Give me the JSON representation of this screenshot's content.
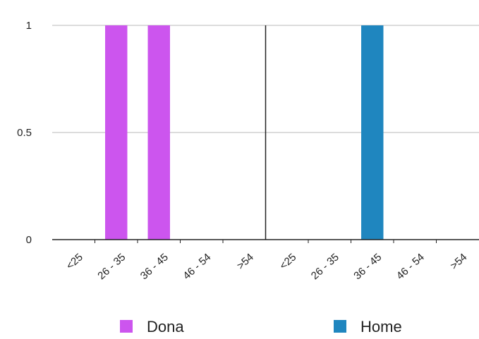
{
  "chart_data": {
    "type": "bar",
    "title": "",
    "xlabel": "",
    "ylabel": "",
    "ylim": [
      0,
      1
    ],
    "yticks": [
      "0",
      "0.5",
      "1"
    ],
    "grid": true,
    "legend_position": "bottom",
    "panels": [
      {
        "name": "Dona",
        "color": "#cc55ee",
        "categories": [
          "<25",
          "26 - 35",
          "36 - 45",
          "46 - 54",
          ">54"
        ],
        "values": [
          0,
          1,
          1,
          0,
          0
        ]
      },
      {
        "name": "Home",
        "color": "#1f86bf",
        "categories": [
          "<25",
          "26 - 35",
          "36 - 45",
          "46 - 54",
          ">54"
        ],
        "values": [
          0,
          0,
          1,
          0,
          0
        ]
      }
    ],
    "legend": [
      {
        "label": "Dona",
        "color": "#cc55ee"
      },
      {
        "label": "Home",
        "color": "#1f86bf"
      }
    ]
  }
}
